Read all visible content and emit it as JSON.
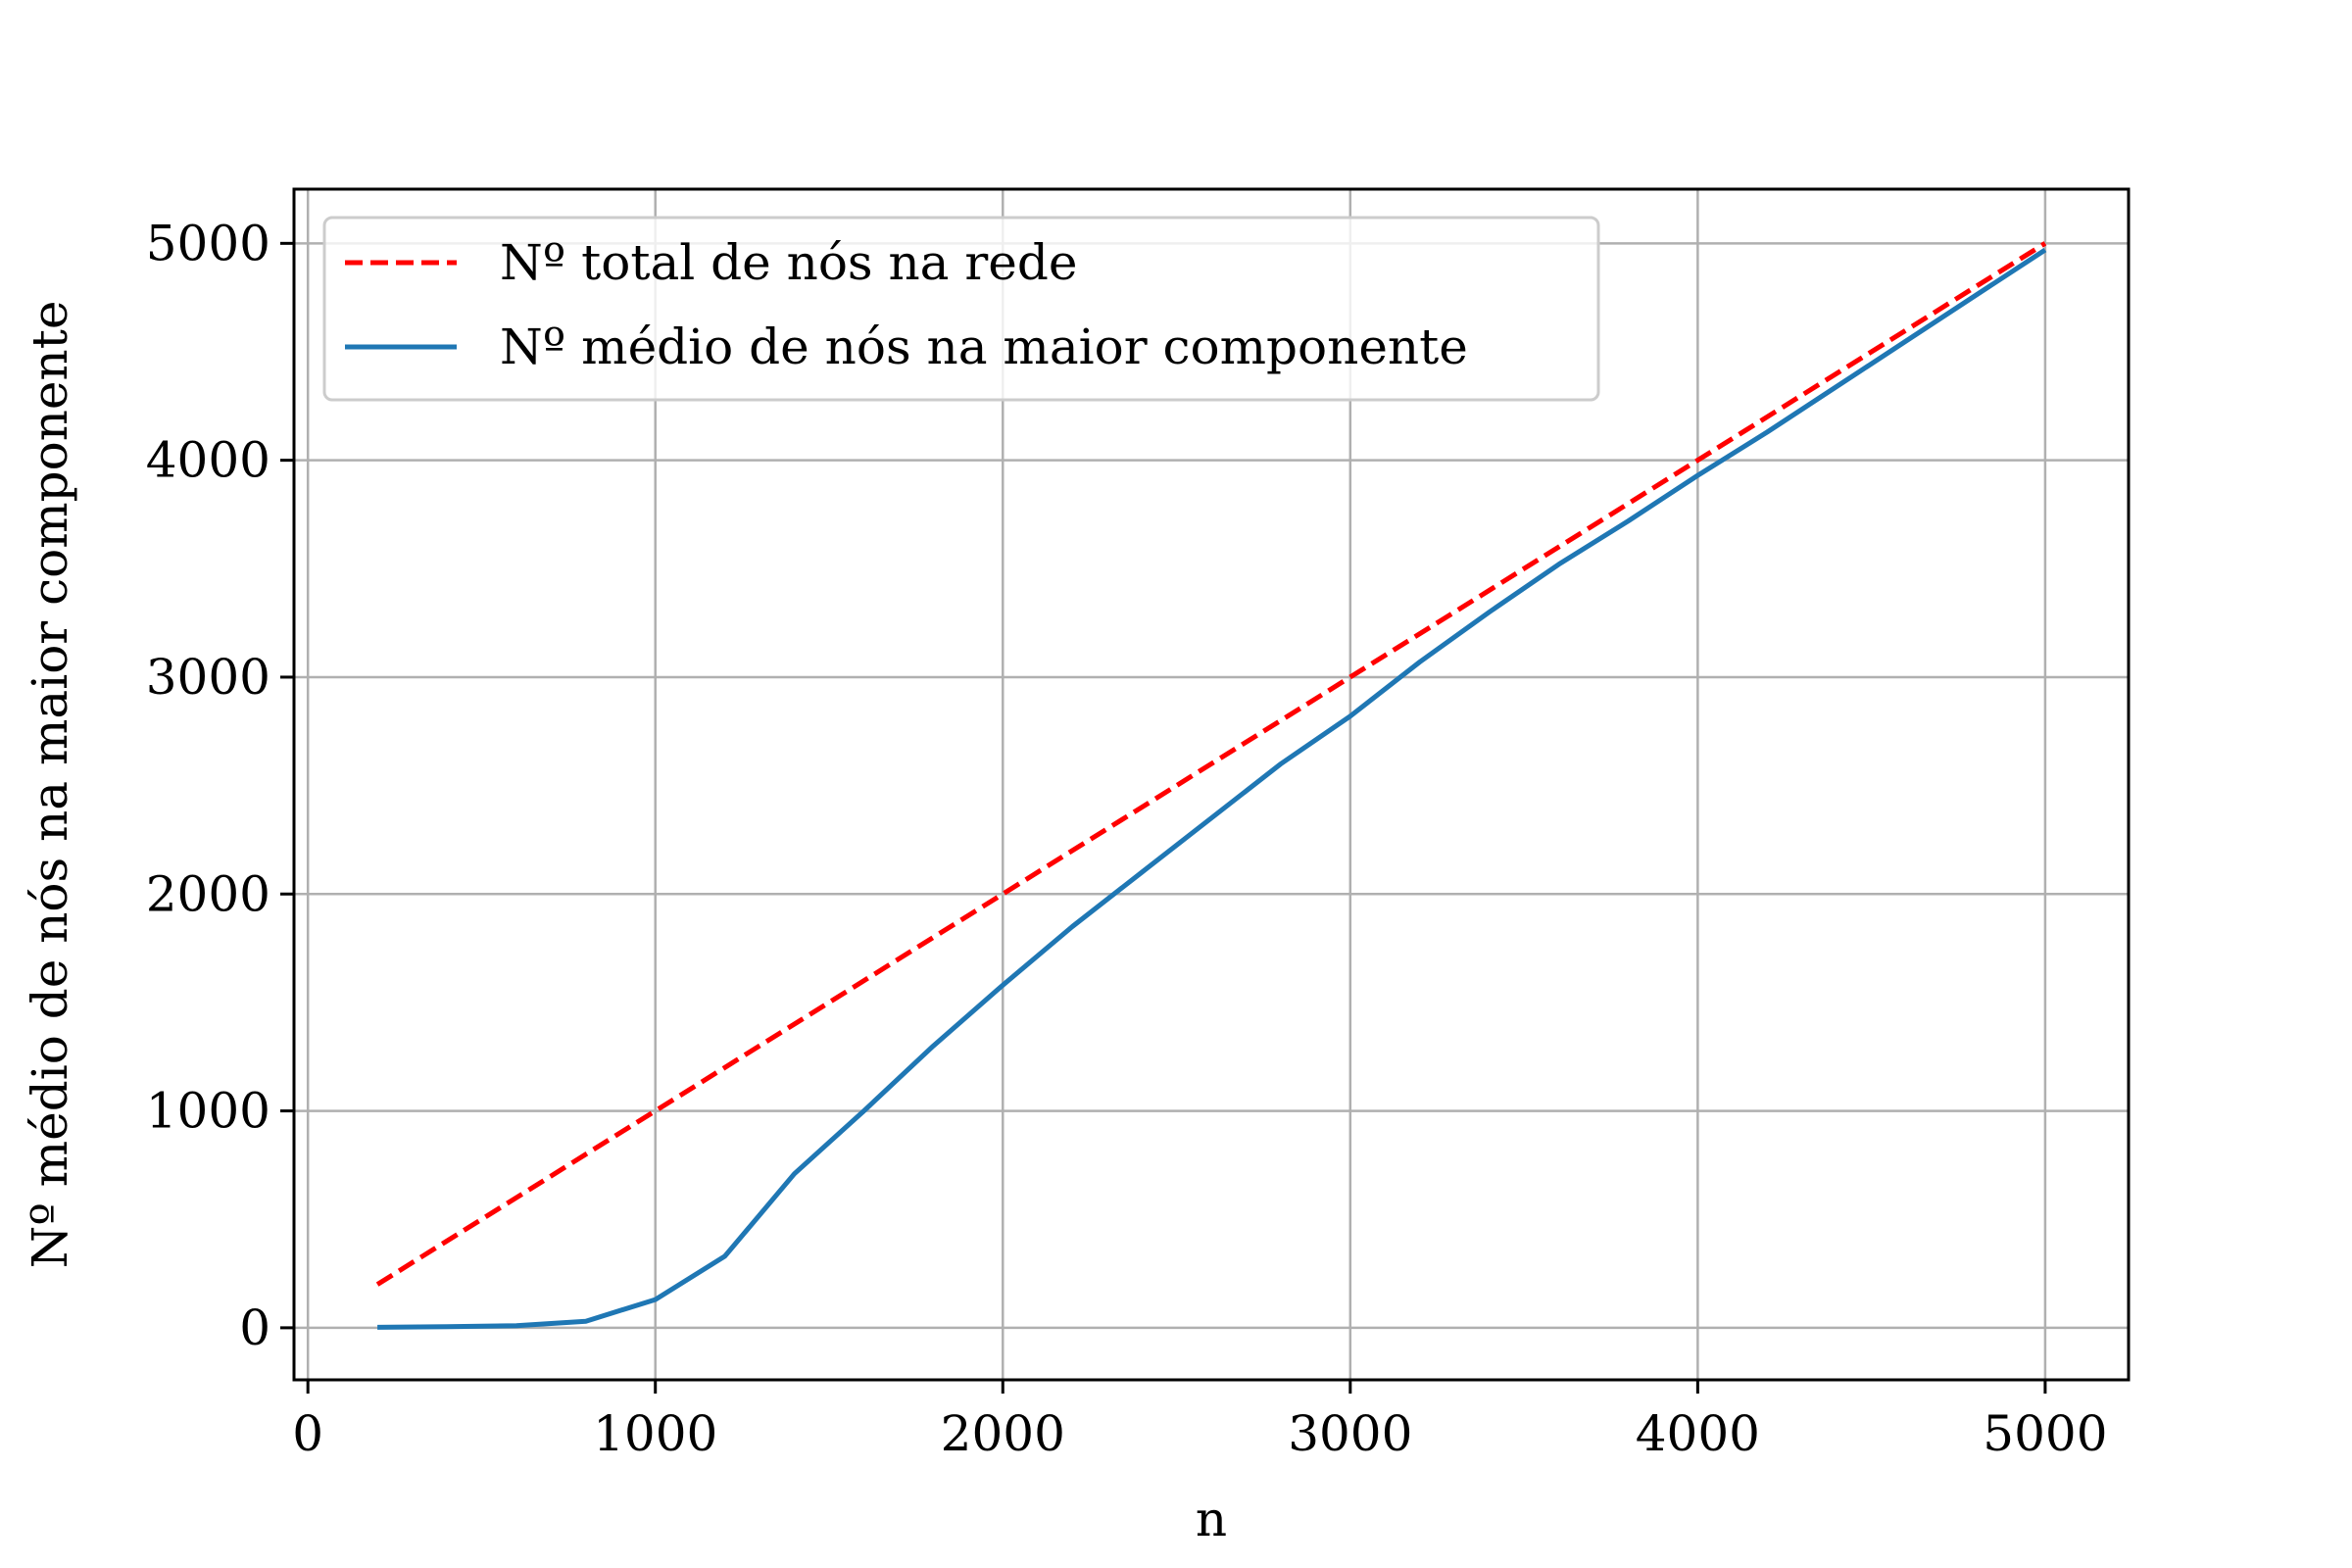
{
  "chart_data": {
    "type": "line",
    "title": "",
    "xlabel": "n",
    "ylabel": "Nº médio de nós na maior componente",
    "xlim": [
      -40,
      5240
    ],
    "ylim": [
      -240,
      5250
    ],
    "xticks": [
      0,
      1000,
      2000,
      3000,
      4000,
      5000
    ],
    "xtick_labels": [
      "0",
      "1000",
      "2000",
      "3000",
      "4000",
      "5000"
    ],
    "yticks": [
      0,
      1000,
      2000,
      3000,
      4000,
      5000
    ],
    "ytick_labels": [
      "0",
      "1000",
      "2000",
      "3000",
      "4000",
      "5000"
    ],
    "grid": true,
    "legend_position": "top-left",
    "series": [
      {
        "name": "Nº total de nós na rede",
        "color": "#ff0000",
        "style": "dashed",
        "x": [
          200,
          5000
        ],
        "y": [
          200,
          5000
        ]
      },
      {
        "name": "Nº médio de nós na maior componente",
        "color": "#1f77b4",
        "style": "solid",
        "x": [
          200,
          400,
          600,
          800,
          1000,
          1200,
          1400,
          1600,
          1800,
          2000,
          2200,
          2400,
          2600,
          2800,
          3000,
          3200,
          3400,
          3600,
          3800,
          4000,
          4200,
          4400,
          4600,
          4800,
          5000
        ],
        "y": [
          2,
          5,
          10,
          30,
          130,
          330,
          710,
          1000,
          1300,
          1580,
          1850,
          2100,
          2350,
          2600,
          2820,
          3070,
          3300,
          3520,
          3720,
          3930,
          4130,
          4340,
          4550,
          4760,
          4970
        ]
      }
    ]
  }
}
